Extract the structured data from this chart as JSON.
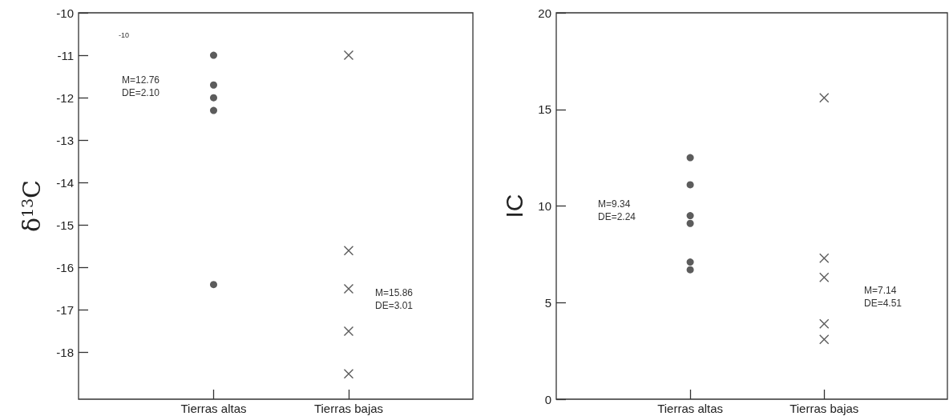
{
  "chart_data": [
    {
      "type": "scatter",
      "ylabel": "δ$^{13}$C",
      "categories": [
        "Tierras altas",
        "Tierras bajas"
      ],
      "ylim": [
        -19.1,
        -10
      ],
      "yticks": [
        -10,
        -11,
        -12,
        -13,
        -14,
        -15,
        -16,
        -17,
        -18
      ],
      "grid": false,
      "series": [
        {
          "color": "#333333",
          "marker": "circle",
          "x": [
            "Tierras altas",
            "Tierras altas",
            "Tierras altas",
            "Tierras altas",
            "Tierras altas"
          ],
          "values": [
            -11.0,
            -11.7,
            -12.0,
            -12.3,
            -16.4
          ]
        },
        {
          "color": "#333333",
          "marker": "cross",
          "x": [
            "Tierras bajas",
            "Tierras bajas",
            "Tierras bajas",
            "Tierras bajas",
            "Tierras bajas"
          ],
          "values": [
            -11.0,
            -15.6,
            -16.5,
            -17.5,
            -18.5
          ]
        }
      ],
      "annotations": [
        "-10",
        "M=12.76\nDE=2.10",
        "M=15.86\nDE=3.01"
      ]
    },
    {
      "type": "scatter",
      "ylabel": "IC",
      "categories": [
        "Tierras altas",
        "Tierras bajas"
      ],
      "ylim": [
        0,
        20
      ],
      "yticks": [
        0,
        5,
        10,
        15,
        20
      ],
      "grid": false,
      "series": [
        {
          "color": "#333333",
          "marker": "circle",
          "x": [
            "Tierras altas",
            "Tierras altas",
            "Tierras altas",
            "Tierras altas",
            "Tierras altas",
            "Tierras altas"
          ],
          "values": [
            12.5,
            11.1,
            9.5,
            9.1,
            7.1,
            6.7
          ]
        },
        {
          "color": "#333333",
          "marker": "cross",
          "x": [
            "Tierras bajas",
            "Tierras bajas",
            "Tierras bajas",
            "Tierras bajas",
            "Tierras bajas"
          ],
          "values": [
            15.6,
            7.3,
            6.3,
            3.9,
            3.1
          ]
        }
      ],
      "annotations": [
        "M=9.34\nDE=2.24",
        "M=7.14\nDE=4.51"
      ]
    }
  ]
}
